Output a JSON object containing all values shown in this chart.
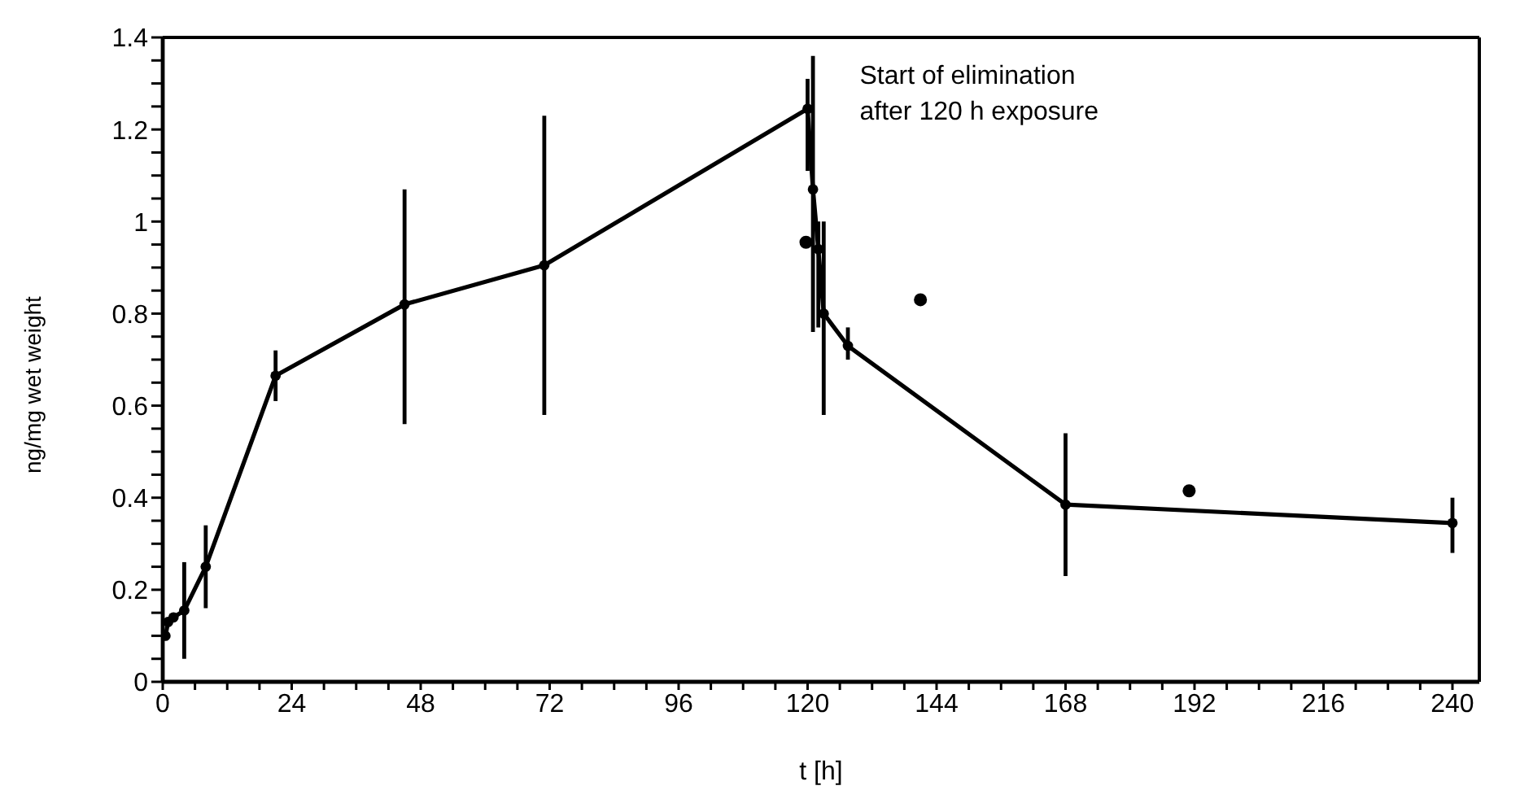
{
  "chart_data": {
    "type": "line",
    "xlabel": "t [h]",
    "ylabel": "ng/mg wet weight",
    "xlim": [
      0,
      245
    ],
    "ylim": [
      0,
      1.4
    ],
    "xticks": [
      0,
      {
        "value": 6,
        "label": null
      },
      {
        "value": 12,
        "label": null
      },
      {
        "value": 18,
        "label": null
      },
      24,
      {
        "value": 30,
        "label": null
      },
      {
        "value": 36,
        "label": null
      },
      {
        "value": 42,
        "label": null
      },
      48,
      {
        "value": 54,
        "label": null
      },
      {
        "value": 60,
        "label": null
      },
      {
        "value": 66,
        "label": null
      },
      72,
      {
        "value": 78,
        "label": null
      },
      {
        "value": 84,
        "label": null
      },
      {
        "value": 90,
        "label": null
      },
      96,
      {
        "value": 102,
        "label": null
      },
      {
        "value": 108,
        "label": null
      },
      {
        "value": 114,
        "label": null
      },
      120,
      {
        "value": 126,
        "label": null
      },
      {
        "value": 132,
        "label": null
      },
      {
        "value": 138,
        "label": null
      },
      144,
      {
        "value": 150,
        "label": null
      },
      {
        "value": 156,
        "label": null
      },
      {
        "value": 162,
        "label": null
      },
      168,
      {
        "value": 174,
        "label": null
      },
      {
        "value": 180,
        "label": null
      },
      {
        "value": 186,
        "label": null
      },
      192,
      {
        "value": 198,
        "label": null
      },
      {
        "value": 204,
        "label": null
      },
      {
        "value": 210,
        "label": null
      },
      216,
      {
        "value": 222,
        "label": null
      },
      {
        "value": 228,
        "label": null
      },
      {
        "value": 234,
        "label": null
      },
      240
    ],
    "yticks": [
      0,
      {
        "value": 0.05,
        "label": null
      },
      {
        "value": 0.1,
        "label": null
      },
      {
        "value": 0.15,
        "label": null
      },
      {
        "value": 0.2,
        "label": "0.2"
      },
      {
        "value": 0.25,
        "label": null
      },
      {
        "value": 0.3,
        "label": null
      },
      {
        "value": 0.35,
        "label": null
      },
      {
        "value": 0.4,
        "label": "0.4"
      },
      {
        "value": 0.45,
        "label": null
      },
      {
        "value": 0.5,
        "label": null
      },
      {
        "value": 0.55,
        "label": null
      },
      {
        "value": 0.6,
        "label": "0.6"
      },
      {
        "value": 0.65,
        "label": null
      },
      {
        "value": 0.7,
        "label": null
      },
      {
        "value": 0.75,
        "label": null
      },
      {
        "value": 0.8,
        "label": "0.8"
      },
      {
        "value": 0.85,
        "label": null
      },
      {
        "value": 0.9,
        "label": null
      },
      {
        "value": 0.95,
        "label": null
      },
      1,
      {
        "value": 1.05,
        "label": null
      },
      {
        "value": 1.1,
        "label": null
      },
      {
        "value": 1.15,
        "label": null
      },
      {
        "value": 1.2,
        "label": "1.2"
      },
      {
        "value": 1.25,
        "label": null
      },
      {
        "value": 1.3,
        "label": null
      },
      {
        "value": 1.35,
        "label": null
      },
      {
        "value": 1.4,
        "label": "1.4"
      }
    ],
    "grid": false,
    "legend": false,
    "marker": "circle",
    "line_style": "solid",
    "annotations": [
      {
        "text": "Start of elimination\nafter 120 h exposure",
        "x": 120,
        "y": 1.3
      }
    ],
    "series": [
      {
        "color": "#000000",
        "x": [
          0.5,
          1,
          2,
          4,
          8,
          21,
          45,
          71,
          120,
          121,
          122,
          123,
          127.5,
          168,
          240
        ],
        "values": [
          0.1,
          0.13,
          0.14,
          0.155,
          0.25,
          0.665,
          0.82,
          0.905,
          1.245,
          1.07,
          0.94,
          0.8,
          0.73,
          0.385,
          0.345
        ],
        "errors": [
          null,
          null,
          null,
          [
            0.05,
            0.26
          ],
          [
            0.16,
            0.34
          ],
          [
            0.61,
            0.72
          ],
          [
            0.56,
            1.07
          ],
          [
            0.58,
            1.23
          ],
          [
            1.11,
            1.31
          ],
          [
            0.76,
            1.36
          ],
          [
            0.77,
            1.0
          ],
          [
            0.58,
            1.0
          ],
          [
            0.7,
            0.77
          ],
          [
            0.23,
            0.54
          ],
          [
            0.28,
            0.4
          ]
        ]
      },
      {
        "type": "scatter",
        "color": "#000000",
        "x": [
          119.7,
          141,
          191
        ],
        "values": [
          0.955,
          0.83,
          0.415
        ]
      }
    ]
  }
}
